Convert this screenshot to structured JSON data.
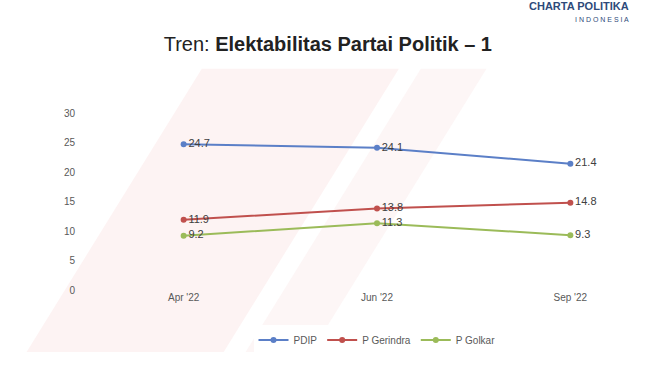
{
  "chart_data": {
    "type": "line",
    "title": "Tren: Elektabilitas Partai Politik – 1",
    "annotations": [
      "CHARTA POLITIKA",
      "INDONESIA"
    ],
    "categories": [
      "Apr '22",
      "Jun '22",
      "Sep '22"
    ],
    "series": [
      {
        "name": "PDIP",
        "color": "#5b7fc7",
        "values": [
          24.7,
          24.1,
          21.4
        ]
      },
      {
        "name": "P Gerindra",
        "color": "#c0504d",
        "values": [
          11.9,
          13.8,
          14.8
        ]
      },
      {
        "name": "P Golkar",
        "color": "#9bbb59",
        "values": [
          9.2,
          11.3,
          9.3
        ]
      }
    ],
    "ylim": [
      0,
      30
    ],
    "yticks": [
      0,
      5,
      10,
      15,
      20,
      25,
      30
    ],
    "grid": false,
    "data_labels": true,
    "legend": "bottom",
    "marker": "circle"
  }
}
